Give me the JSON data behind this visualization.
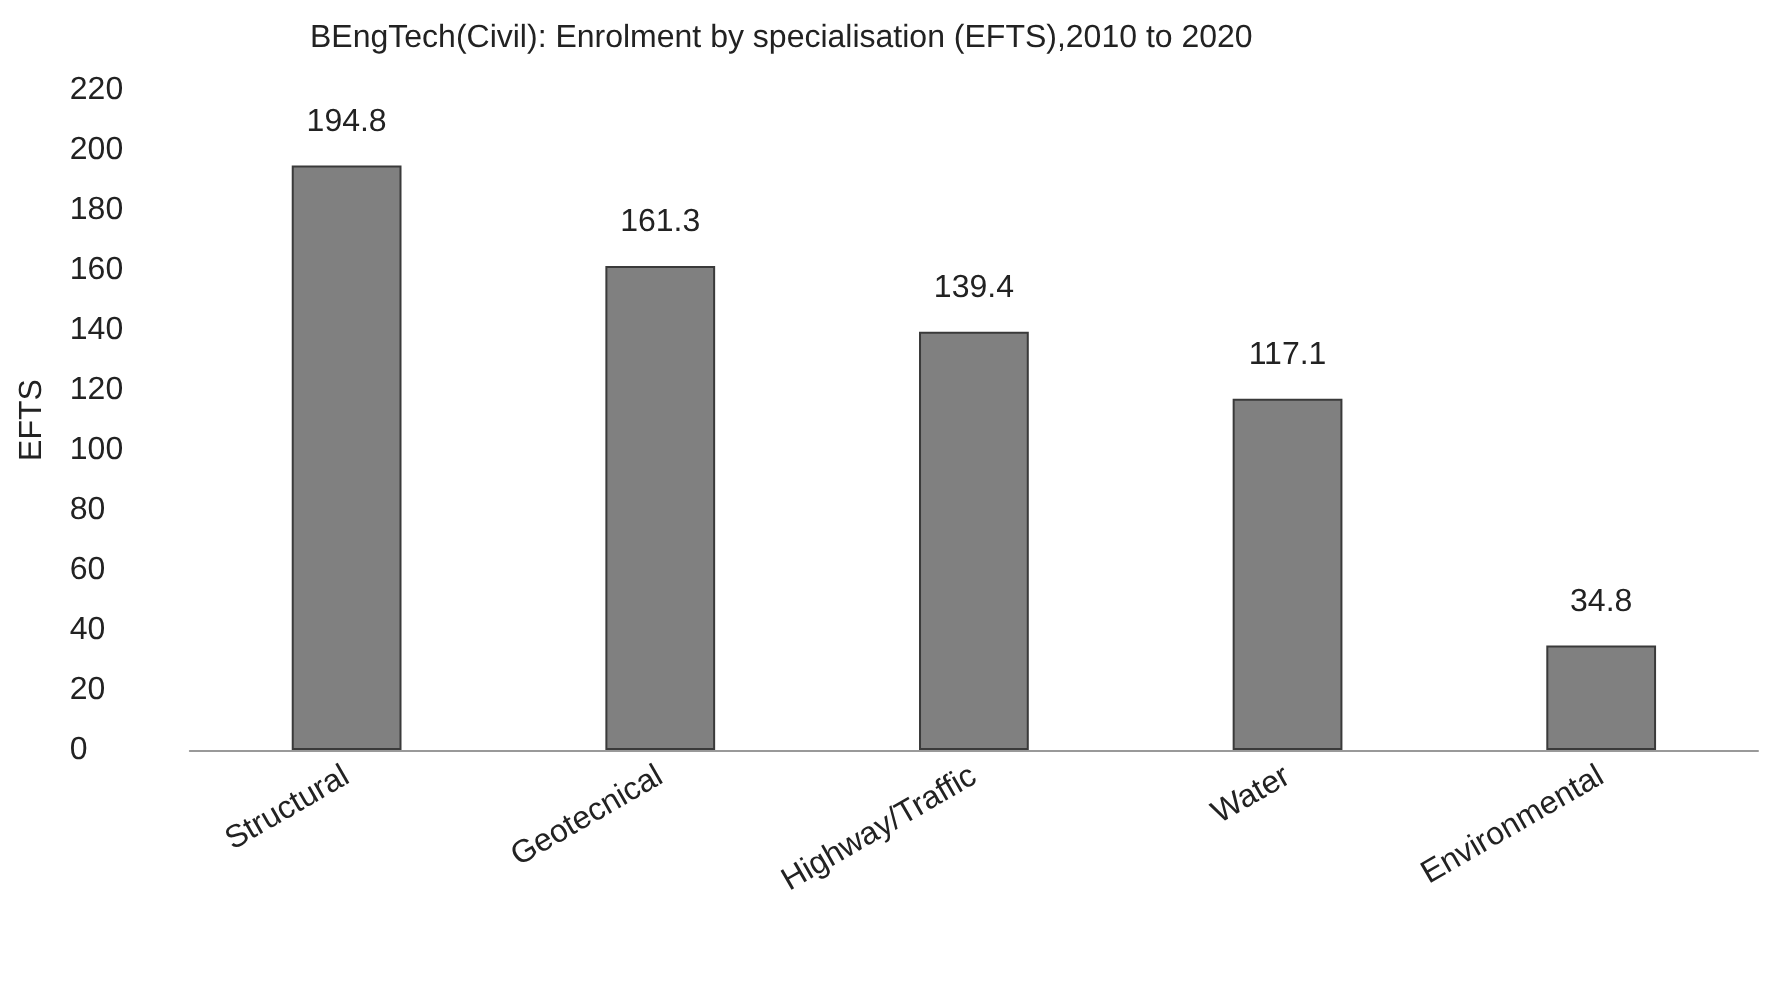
{
  "chart_data": {
    "type": "bar",
    "title": "BEngTech(Civil): Enrolment by specialisation (EFTS),2010 to 2020",
    "ylabel": "EFTS",
    "categories": [
      "Structural",
      "Geotecnical",
      "Highway/Traffic",
      "Water",
      "Environmental"
    ],
    "values": [
      194.8,
      161.3,
      139.4,
      117.1,
      34.8
    ],
    "color": "#808080",
    "ylim": [
      0,
      220
    ],
    "yticks": [
      0,
      20,
      40,
      60,
      80,
      100,
      120,
      140,
      160,
      180,
      200,
      220
    ],
    "data_labels": true
  }
}
